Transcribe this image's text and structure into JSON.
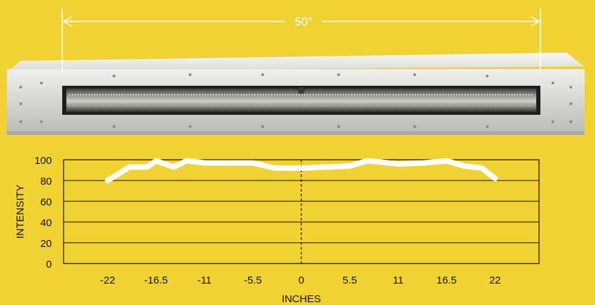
{
  "dimension_label": "50\"",
  "colors": {
    "background": "#f0d232",
    "housing": "#d8d8d4",
    "line": "#ffffff",
    "grid": "#111111"
  },
  "chart_data": {
    "type": "line",
    "title": "",
    "xlabel": "INCHES",
    "ylabel": "INTENSITY",
    "xlim": [
      -27,
      27
    ],
    "ylim": [
      0,
      100
    ],
    "yticks": [
      0,
      20,
      40,
      60,
      80,
      100
    ],
    "xticks": [
      -22,
      -16.5,
      -11,
      -5.5,
      0,
      5.5,
      11,
      16.5,
      22
    ],
    "xtick_labels": [
      "-22",
      "-16.5",
      "-11",
      "-5.5",
      "0",
      "5.5",
      "11",
      "16.5",
      "22"
    ],
    "ytick_labels": [
      "0",
      "20",
      "40",
      "60",
      "80",
      "100"
    ],
    "grid": "horizontal",
    "center_line": "dashed at 0",
    "series": [
      {
        "x": [
          -22,
          -19.5,
          -17.5,
          -16.5,
          -14.5,
          -13,
          -11,
          -8,
          -5.5,
          -3,
          0,
          3,
          5.5,
          7.5,
          11,
          14,
          16.5,
          18.5,
          20.5,
          22
        ],
        "y": [
          80,
          93,
          93,
          99,
          93,
          99,
          97,
          97,
          97,
          92,
          92,
          93,
          94,
          99,
          96,
          97,
          99,
          94,
          92,
          82
        ]
      }
    ]
  }
}
